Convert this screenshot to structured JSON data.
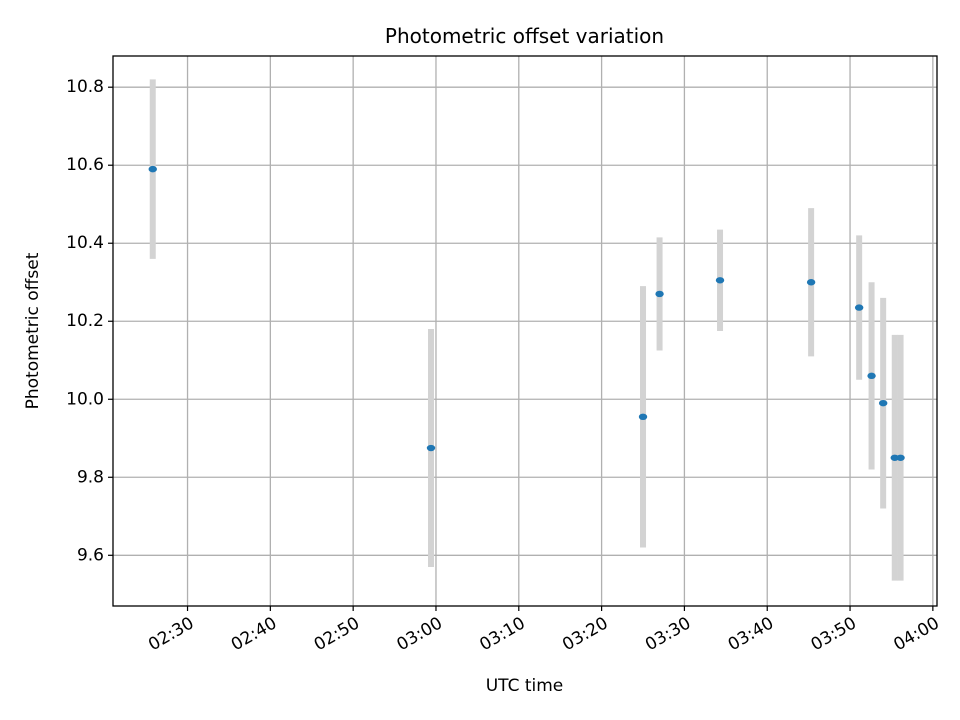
{
  "chart_data": {
    "type": "scatter",
    "title": "Photometric offset variation",
    "xlabel": "UTC time",
    "ylabel": "Photometric offset",
    "xlim": [
      "02:21",
      "04:00.5"
    ],
    "ylim": [
      9.47,
      10.88
    ],
    "x_ticks": [
      "02:30",
      "02:40",
      "02:50",
      "03:00",
      "03:10",
      "03:20",
      "03:30",
      "03:40",
      "03:50",
      "04:00"
    ],
    "y_ticks": [
      "9.6",
      "9.8",
      "10.0",
      "10.2",
      "10.4",
      "10.6",
      "10.8"
    ],
    "grid": true,
    "series": [
      {
        "error_type": "symmetric",
        "points": [
          {
            "x": "02:25.8",
            "y": 10.59,
            "err": 0.23
          },
          {
            "x": "02:59.4",
            "y": 9.875,
            "err": 0.305
          },
          {
            "x": "03:25.0",
            "y": 9.955,
            "err": 0.335
          },
          {
            "x": "03:27.0",
            "y": 10.27,
            "err": 0.145
          },
          {
            "x": "03:34.3",
            "y": 10.305,
            "err": 0.13
          },
          {
            "x": "03:45.3",
            "y": 10.3,
            "err": 0.19
          },
          {
            "x": "03:51.1",
            "y": 10.235,
            "err": 0.185
          },
          {
            "x": "03:52.6",
            "y": 10.06,
            "err": 0.24
          },
          {
            "x": "03:54.0",
            "y": 9.99,
            "err": 0.27
          },
          {
            "x": "03:55.4",
            "y": 9.85,
            "err": 0.315
          },
          {
            "x": "03:56.1",
            "y": 9.85,
            "err": 0.315
          }
        ]
      }
    ],
    "colors": {
      "marker": "#1f77b4",
      "errorbar": "#d3d3d3",
      "grid": "#b0b0b0",
      "axes": "#000000"
    }
  }
}
